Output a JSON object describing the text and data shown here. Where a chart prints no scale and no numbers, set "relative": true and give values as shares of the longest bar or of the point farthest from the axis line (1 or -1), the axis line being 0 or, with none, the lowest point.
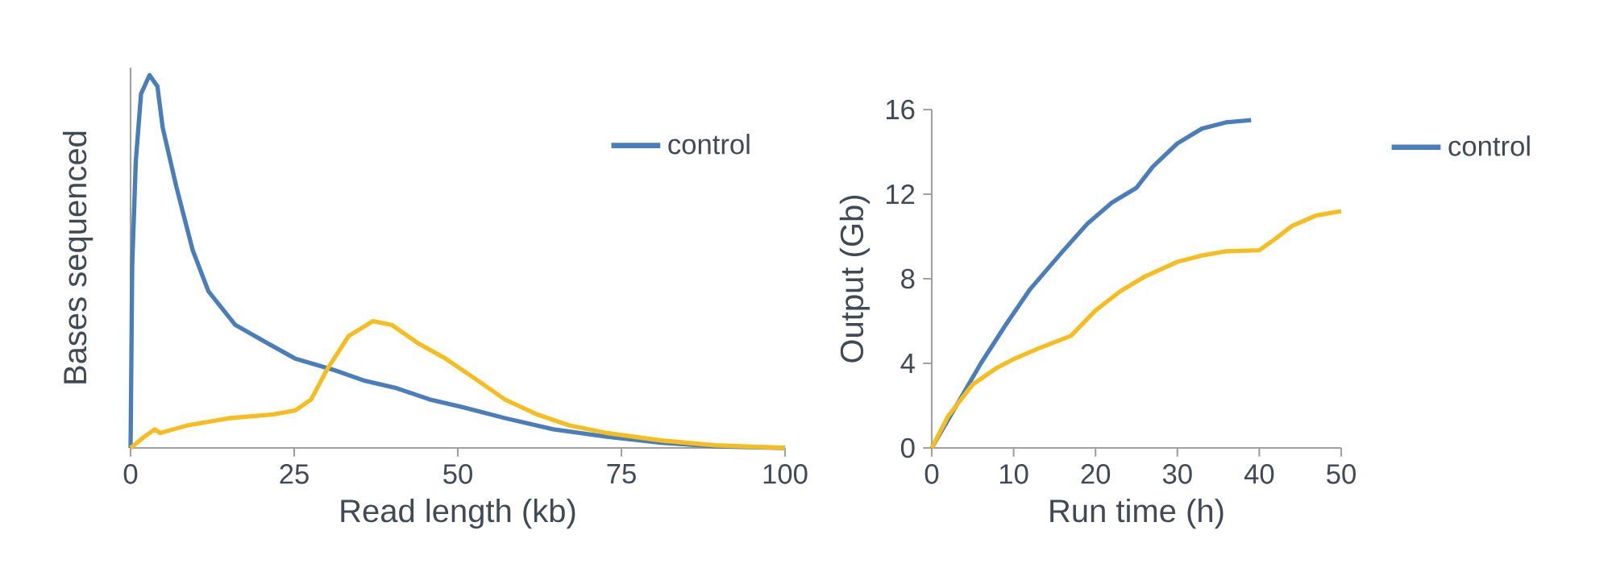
{
  "chart_data": [
    {
      "type": "line",
      "relative": true,
      "xlabel": "Read length (kb)",
      "ylabel": "Bases sequenced",
      "xlim": [
        0,
        100
      ],
      "xticks": [
        0,
        25,
        50,
        75,
        100
      ],
      "tick_labels": "x",
      "legend": "top right",
      "series": [
        {
          "name": "control",
          "color": "#4a7ebb",
          "x": [
            0,
            0.25,
            0.8,
            1.6,
            2.9,
            4.1,
            4.9,
            7.0,
            9.5,
            11.9,
            16.0,
            21.0,
            25.1,
            30.9,
            35.8,
            40.7,
            45.7,
            50.6,
            57.2,
            64.6,
            72.8,
            81.1,
            89.3,
            100
          ],
          "values": [
            0,
            0.49,
            0.77,
            0.95,
            1.0,
            0.97,
            0.86,
            0.7,
            0.53,
            0.42,
            0.33,
            0.28,
            0.24,
            0.21,
            0.18,
            0.16,
            0.13,
            0.11,
            0.08,
            0.05,
            0.03,
            0.014,
            0.004,
            0
          ]
        },
        {
          "color": "#f5bd1f",
          "x": [
            0,
            2.1,
            3.7,
            4.5,
            8.6,
            15.2,
            21.8,
            25.1,
            27.6,
            30.0,
            33.3,
            37.0,
            39.9,
            44.0,
            48.1,
            52.3,
            57.2,
            62.1,
            67.1,
            72.8,
            81.1,
            89.3,
            100
          ],
          "values": [
            0,
            0.03,
            0.05,
            0.04,
            0.06,
            0.08,
            0.09,
            0.1,
            0.13,
            0.21,
            0.3,
            0.34,
            0.33,
            0.28,
            0.24,
            0.19,
            0.13,
            0.09,
            0.06,
            0.04,
            0.02,
            0.007,
            0
          ]
        }
      ]
    },
    {
      "type": "line",
      "xlabel": "Run time (h)",
      "ylabel": "Output (Gb)",
      "xlim": [
        0,
        50
      ],
      "xticks": [
        0,
        10,
        20,
        30,
        40,
        50
      ],
      "ylim": [
        0,
        16
      ],
      "yticks": [
        0,
        4,
        8,
        12,
        16
      ],
      "legend": "right",
      "series": [
        {
          "name": "control",
          "color": "#4a7ebb",
          "x": [
            0,
            3,
            6,
            9,
            12,
            16,
            19,
            22,
            25,
            27,
            30,
            33,
            36,
            39
          ],
          "values": [
            0,
            2.0,
            4.0,
            5.8,
            7.5,
            9.3,
            10.6,
            11.6,
            12.3,
            13.3,
            14.4,
            15.1,
            15.4,
            15.5
          ]
        },
        {
          "color": "#f5bd1f",
          "x": [
            0,
            2,
            5,
            8,
            10,
            13,
            15,
            17,
            20,
            23,
            26,
            30,
            33,
            36,
            40,
            42,
            44,
            47,
            50
          ],
          "values": [
            0,
            1.5,
            3.0,
            3.8,
            4.2,
            4.7,
            5.0,
            5.3,
            6.5,
            7.4,
            8.1,
            8.8,
            9.1,
            9.3,
            9.35,
            9.9,
            10.5,
            11.0,
            11.2
          ]
        }
      ]
    }
  ]
}
